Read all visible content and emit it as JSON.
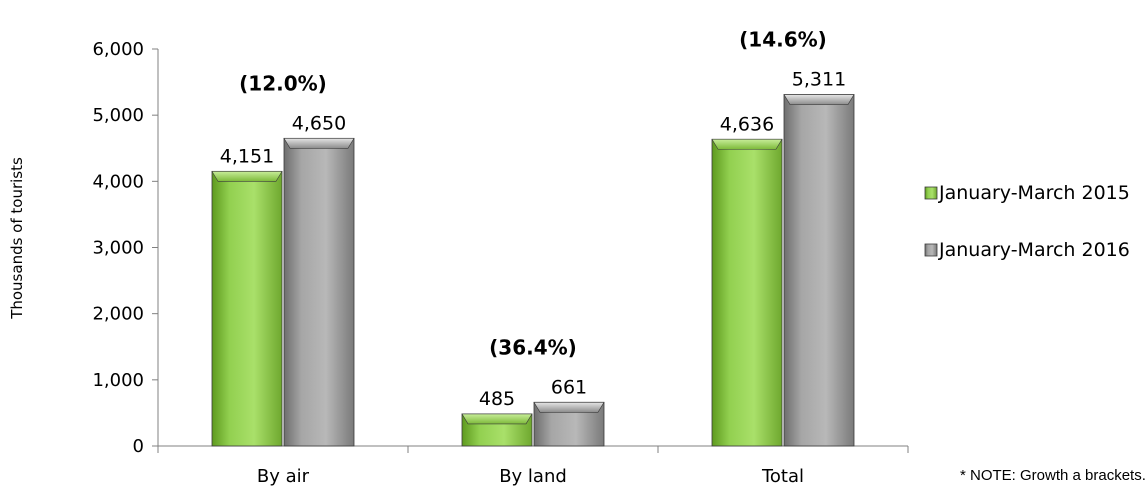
{
  "chart_data": {
    "type": "bar",
    "ylabel": "Thousands of tourists",
    "ylim": [
      0,
      6000
    ],
    "yticks": [
      "0",
      "1,000",
      "2,000",
      "3,000",
      "4,000",
      "5,000",
      "6,000"
    ],
    "categories": [
      "By air",
      "By land",
      "Total"
    ],
    "series": [
      {
        "name": "January-March  2015",
        "values": [
          4151,
          485,
          4636
        ],
        "labels": [
          "4,151",
          "485",
          "4,636"
        ],
        "color": "#92D050"
      },
      {
        "name": "January-March 2016",
        "values": [
          4650,
          661,
          5311
        ],
        "labels": [
          "4,650",
          "661",
          "5,311"
        ],
        "color": "#A6A6A6"
      }
    ],
    "growth_labels": [
      "(12.0%)",
      "(36.4%)",
      "(14.6%)"
    ],
    "grid": false,
    "legend_position": "right"
  },
  "note": "* NOTE: Growth a brackets."
}
